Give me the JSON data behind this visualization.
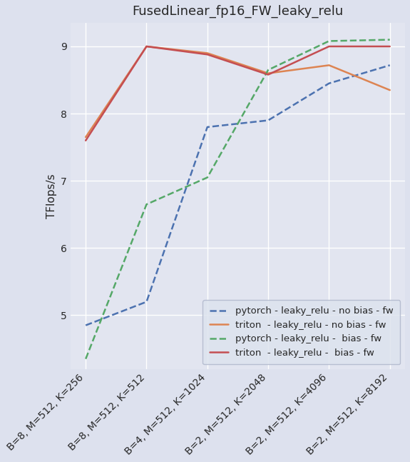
{
  "title": "FusedLinear_fp16_FW_leaky_relu",
  "ylabel": "TFlops/s",
  "x_labels": [
    "B=8, M=512, K=256",
    "B=8, M=512, K=512",
    "B=4, M=512, K=1024",
    "B=2, M=512, K=2048",
    "B=2, M=512, K=4096",
    "B=2, M=512, K=8192"
  ],
  "series": [
    {
      "label": "pytorch - leaky_relu - no bias - fw",
      "values": [
        4.85,
        5.2,
        7.8,
        7.9,
        8.45,
        8.72
      ],
      "color": "#4c72b0",
      "linestyle": "dashed"
    },
    {
      "label": "triton  - leaky_relu - no bias - fw",
      "values": [
        7.65,
        9.0,
        8.9,
        8.6,
        8.72,
        8.35
      ],
      "color": "#dd8452",
      "linestyle": "solid"
    },
    {
      "label": "pytorch - leaky_relu -  bias - fw",
      "values": [
        4.35,
        6.65,
        7.05,
        8.65,
        9.08,
        9.1
      ],
      "color": "#55a868",
      "linestyle": "dashed"
    },
    {
      "label": "triton  - leaky_relu -  bias - fw",
      "values": [
        7.6,
        9.0,
        8.88,
        8.58,
        9.0,
        9.0
      ],
      "color": "#c44e52",
      "linestyle": "solid"
    }
  ],
  "ylim": [
    4.2,
    9.35
  ],
  "yticks": [
    5,
    6,
    7,
    8,
    9
  ],
  "bg_color": "#dde1ee",
  "plot_bg_color": "#e2e5f0",
  "grid_color": "#ffffff",
  "title_fontsize": 13,
  "tick_fontsize": 10,
  "ylabel_fontsize": 11,
  "legend_fontsize": 9.5,
  "linewidth": 1.8
}
